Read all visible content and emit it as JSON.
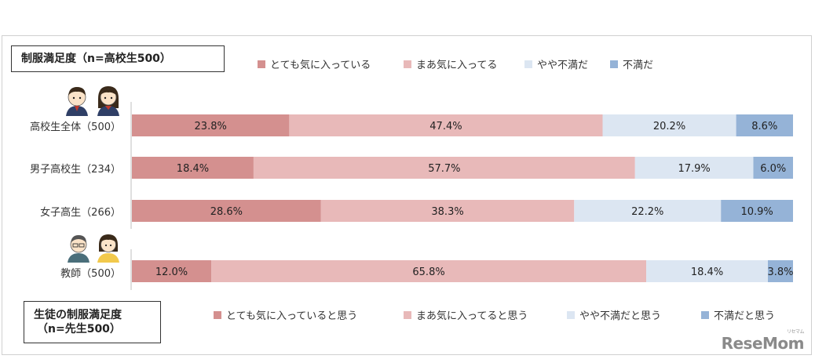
{
  "titles": {
    "top": "制服満足度（n=高校生500）",
    "bottom_line1": "生徒の制服満足度",
    "bottom_line2": "（n=先生500）"
  },
  "legend_top": [
    {
      "label": "とても気に入っている",
      "color": "#d4908f"
    },
    {
      "label": "まあ気に入ってる",
      "color": "#e8b9b9"
    },
    {
      "label": "やや不満だ",
      "color": "#dce6f2"
    },
    {
      "label": "不満だ",
      "color": "#95b3d7"
    }
  ],
  "legend_bottom": [
    {
      "label": "とても気に入っていると思う",
      "color": "#d4908f"
    },
    {
      "label": "まあ気に入ってると思う",
      "color": "#e8b9b9"
    },
    {
      "label": "やや不満だと思う",
      "color": "#dce6f2"
    },
    {
      "label": "不満だと思う",
      "color": "#95b3d7"
    }
  ],
  "watermark": {
    "text": "ReseMom",
    "sub": "リセマム"
  },
  "chart_data": {
    "type": "bar",
    "orientation": "horizontal",
    "stacked": "percent",
    "categories": [
      "高校生全体（500）",
      "男子高校生（234）",
      "女子高生（266）",
      "教師（500）"
    ],
    "series": [
      {
        "name": "とても気に入っている",
        "values": [
          23.8,
          18.4,
          28.6,
          12.0
        ],
        "labels": [
          "23.8%",
          "18.4%",
          "28.6%",
          "12.0%"
        ]
      },
      {
        "name": "まあ気に入ってる",
        "values": [
          47.4,
          57.7,
          38.3,
          65.8
        ],
        "labels": [
          "47.4%",
          "57.7%",
          "38.3%",
          "65.8%"
        ]
      },
      {
        "name": "やや不満だ",
        "values": [
          20.2,
          17.9,
          22.2,
          18.4
        ],
        "labels": [
          "20.2%",
          "17.9%",
          "22.2%",
          "18.4%"
        ]
      },
      {
        "name": "不満だ",
        "values": [
          8.6,
          6.0,
          10.9,
          3.8
        ],
        "labels": [
          "8.6%",
          "6.0%",
          "10.9%",
          "3.8%"
        ]
      }
    ],
    "colors": [
      "#d4908f",
      "#e8b9b9",
      "#dce6f2",
      "#95b3d7"
    ],
    "xlim": [
      0,
      100
    ]
  }
}
